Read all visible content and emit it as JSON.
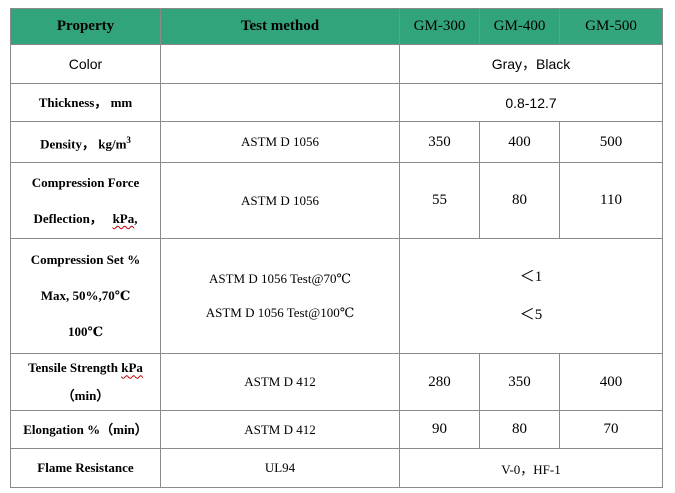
{
  "header": {
    "property": "Property",
    "test_method": "Test method",
    "grades": [
      "GM-300",
      "GM-400",
      "GM-500"
    ]
  },
  "rows": {
    "color": {
      "property": "Color",
      "method": "",
      "value": "Gray，Black"
    },
    "thickness": {
      "property": "Thickness， mm",
      "method": "",
      "value": "0.8-12.7"
    },
    "density": {
      "property": "Density， kg/m",
      "property_sup": "3",
      "method": "ASTM D 1056",
      "values": [
        "350",
        "400",
        "500"
      ]
    },
    "compression_force": {
      "property_line1": "Compression Force",
      "property_line2a": "Deflection，",
      "property_line2b": "kPa",
      "property_line2c": ",",
      "method": "ASTM D 1056",
      "values": [
        "55",
        "80",
        "110"
      ]
    },
    "compression_set": {
      "property_line1": "Compression Set %",
      "property_line2": "Max,   50%,70℃",
      "property_line3": "100℃",
      "method_1": "ASTM D 1056 Test@70℃",
      "method_2": "ASTM D 1056 Test@100℃",
      "value_1": "＜1",
      "value_2": "＜5"
    },
    "tensile": {
      "property_line1a": "Tensile Strength ",
      "property_line1b": "kPa",
      "property_line2": "（min）",
      "method": "ASTM D 412",
      "values": [
        "280",
        "350",
        "400"
      ]
    },
    "elongation": {
      "property": "Elongation %（min）",
      "method": "ASTM D 412",
      "values": [
        "90",
        "80",
        "70"
      ]
    },
    "flame": {
      "property": "Flame Resistance",
      "method": "UL94",
      "value": "V-0，HF-1"
    }
  }
}
